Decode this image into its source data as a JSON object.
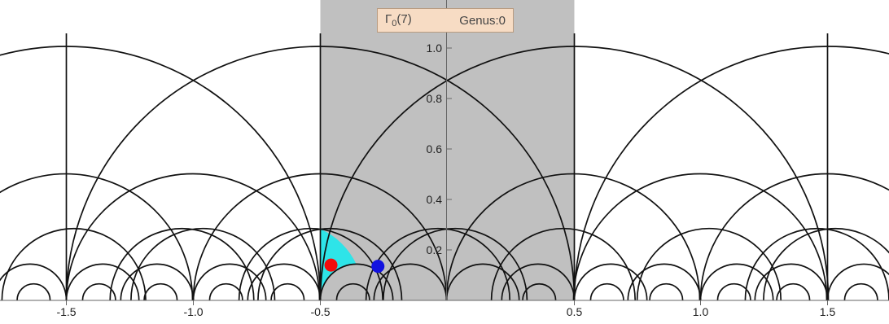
{
  "label": {
    "group_symbol": "Γ",
    "group_subscript": "0",
    "group_arg": "(7)",
    "genus_text": "Genus:0"
  },
  "axes": {
    "x_ticks": [
      "-1.5",
      "-1.0",
      "-0.5",
      "0.5",
      "1.0",
      "1.5"
    ],
    "y_ticks": [
      "0.2",
      "0.4",
      "0.6",
      "0.8",
      "1.0"
    ]
  },
  "colors": {
    "strip": "#c0c0c0",
    "fundamental_region": "#2ee4e8",
    "curves": "#111111",
    "red_point": "#f20c0c",
    "blue_point": "#1212e0"
  },
  "points": [
    {
      "name": "red-point",
      "x": -0.455,
      "y": 0.14
    },
    {
      "name": "blue-point",
      "x": -0.27,
      "y": 0.135
    }
  ]
}
